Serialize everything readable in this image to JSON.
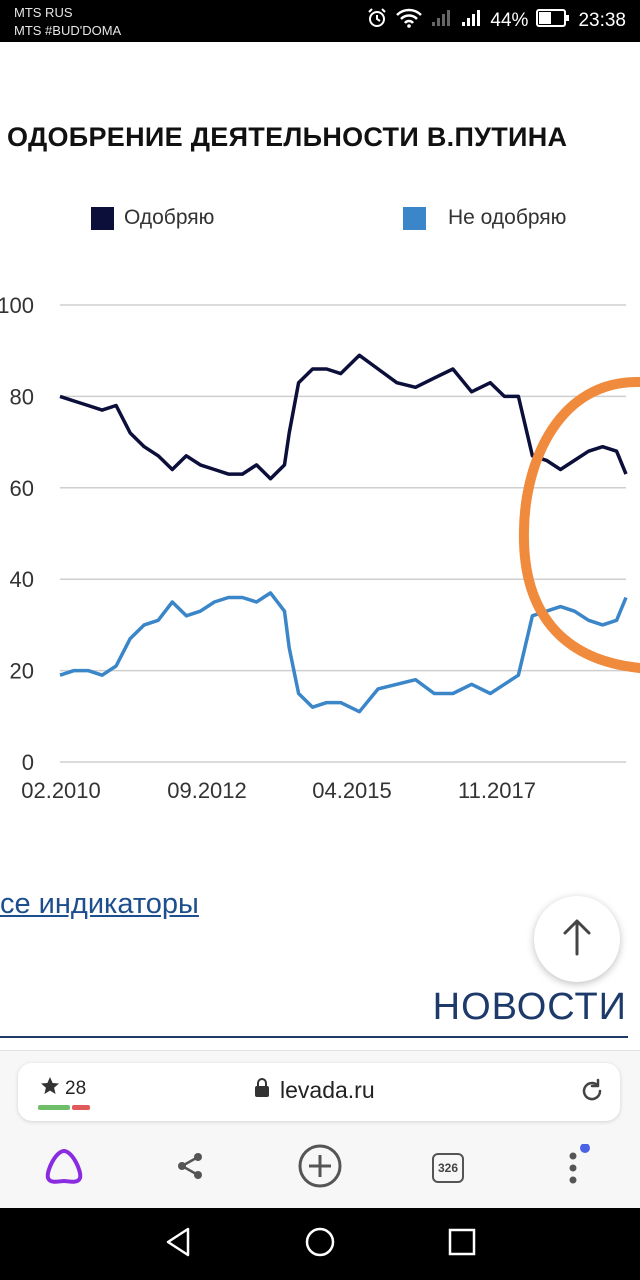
{
  "status_bar": {
    "carrier_1": "MTS RUS",
    "carrier_2": "MTS #BUD'DOMA",
    "battery": "44%",
    "time": "23:38",
    "icons": [
      "alarm-icon",
      "wifi-icon",
      "signal-icon",
      "signal-icon",
      "battery-icon"
    ]
  },
  "page": {
    "headline": "ОДОБРЕНИЕ ДЕЯТЕЛЬНОСТИ В.ПУТИНА",
    "legend": [
      {
        "label": "Одобряю",
        "color": "#0b0f3a"
      },
      {
        "label": "Не одобряю",
        "color": "#3a86c8"
      }
    ],
    "all_indicators_link": "се индикаторы",
    "news_heading": "НОВОСТИ",
    "highlight_color": "#f08a3c"
  },
  "chart_data": {
    "type": "line",
    "x_ticks": [
      "02.2010",
      "09.2012",
      "04.2015",
      "11.2017"
    ],
    "y_ticks": [
      "0",
      "20",
      "40",
      "60",
      "80",
      "100"
    ],
    "ylim": [
      0,
      100
    ],
    "grid": true,
    "legend_position": "top",
    "x_range": [
      "2010-02",
      "2020-03"
    ],
    "series": [
      {
        "name": "Одобряю",
        "color": "#0b0f3a",
        "x": [
          "2010-02",
          "2010-05",
          "2010-08",
          "2010-11",
          "2011-02",
          "2011-05",
          "2011-08",
          "2011-11",
          "2012-02",
          "2012-05",
          "2012-08",
          "2012-11",
          "2013-02",
          "2013-05",
          "2013-08",
          "2013-11",
          "2014-02",
          "2014-03",
          "2014-05",
          "2014-08",
          "2014-11",
          "2015-02",
          "2015-06",
          "2015-10",
          "2016-02",
          "2016-06",
          "2016-10",
          "2017-02",
          "2017-06",
          "2017-10",
          "2018-01",
          "2018-04",
          "2018-07",
          "2018-10",
          "2019-01",
          "2019-04",
          "2019-07",
          "2019-10",
          "2020-01",
          "2020-03"
        ],
        "y": [
          80,
          79,
          78,
          77,
          78,
          72,
          69,
          67,
          64,
          67,
          65,
          64,
          63,
          63,
          65,
          62,
          65,
          72,
          83,
          86,
          86,
          85,
          89,
          86,
          83,
          82,
          84,
          86,
          81,
          83,
          80,
          80,
          67,
          66,
          64,
          66,
          68,
          69,
          68,
          63
        ]
      },
      {
        "name": "Не одобряю",
        "color": "#3a86c8",
        "x": [
          "2010-02",
          "2010-05",
          "2010-08",
          "2010-11",
          "2011-02",
          "2011-05",
          "2011-08",
          "2011-11",
          "2012-02",
          "2012-05",
          "2012-08",
          "2012-11",
          "2013-02",
          "2013-05",
          "2013-08",
          "2013-11",
          "2014-02",
          "2014-03",
          "2014-05",
          "2014-08",
          "2014-11",
          "2015-02",
          "2015-06",
          "2015-10",
          "2016-02",
          "2016-06",
          "2016-10",
          "2017-02",
          "2017-06",
          "2017-10",
          "2018-01",
          "2018-04",
          "2018-07",
          "2018-10",
          "2019-01",
          "2019-04",
          "2019-07",
          "2019-10",
          "2020-01",
          "2020-03"
        ],
        "y": [
          19,
          20,
          20,
          19,
          21,
          27,
          30,
          31,
          35,
          32,
          33,
          35,
          36,
          36,
          35,
          37,
          33,
          25,
          15,
          12,
          13,
          13,
          11,
          16,
          17,
          18,
          15,
          15,
          17,
          15,
          17,
          19,
          32,
          33,
          34,
          33,
          31,
          30,
          31,
          36
        ]
      }
    ]
  },
  "browser": {
    "bookmark_count": "28",
    "url": "levada.ru",
    "tab_count": "326",
    "accent_bars": [
      "#6fbf6a",
      "#e05a5a"
    ],
    "notification_dot": "#4a63e6"
  }
}
